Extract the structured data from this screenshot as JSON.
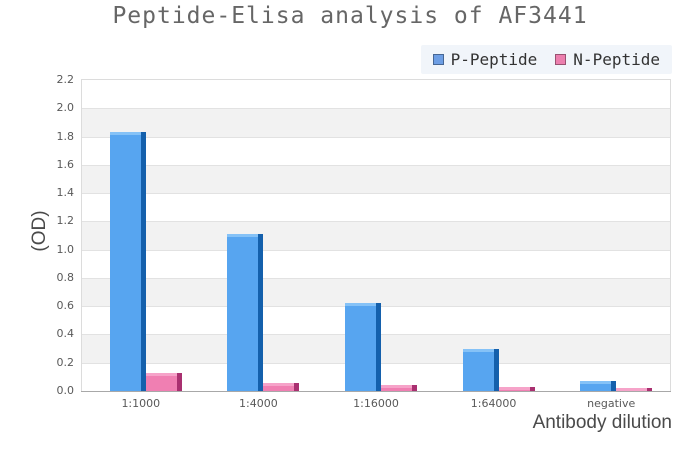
{
  "title": "Peptide-Elisa analysis of AF3441",
  "legend": {
    "background": "#f1f5fa",
    "items": [
      {
        "label": "P-Peptide",
        "marker_color": "#6d9ee4"
      },
      {
        "label": "N-Peptide",
        "marker_color": "#ec7fae"
      }
    ]
  },
  "chart_data": {
    "type": "bar",
    "title": "Peptide-Elisa analysis of AF3441",
    "categories": [
      "1:1000",
      "1:4000",
      "1:16000",
      "1:64000",
      "negative"
    ],
    "series": [
      {
        "name": "P-Peptide",
        "values": [
          1.83,
          1.11,
          0.62,
          0.3,
          0.07
        ],
        "color": "#57a5f0",
        "color_top": "#85c2f7",
        "color_side": "#1460ac"
      },
      {
        "name": "N-Peptide",
        "values": [
          0.13,
          0.06,
          0.04,
          0.03,
          0.02
        ],
        "color": "#f07fb2",
        "color_top": "#f6a3c9",
        "color_side": "#a93070"
      }
    ],
    "xlabel": "Antibody dilution",
    "ylabel": "(OD)",
    "ylim": [
      0,
      2.2
    ],
    "ytick_step": 0.2,
    "y_tick_labels": [
      "0.0",
      "0.2",
      "0.4",
      "0.6",
      "0.8",
      "1.0",
      "1.2",
      "1.4",
      "1.6",
      "1.8",
      "2.0",
      "2.2"
    ],
    "grid": true,
    "band_colors": [
      "#ffffff",
      "#f2f2f2"
    ],
    "legend_position": "top-right"
  }
}
